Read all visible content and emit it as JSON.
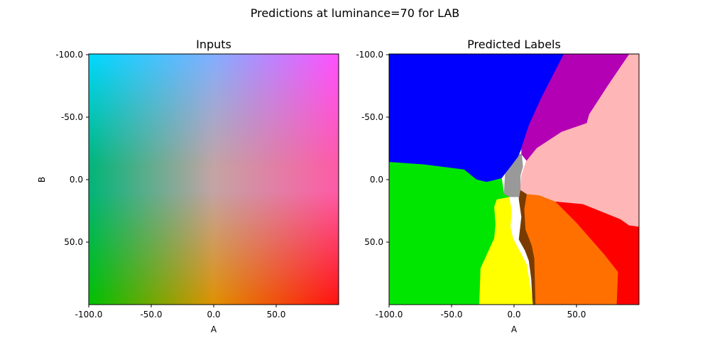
{
  "figure_title": "Predictions at luminance=70 for LAB",
  "chart_data": [
    {
      "type": "heatmap",
      "title": "Inputs",
      "xlabel": "A",
      "ylabel": "B",
      "xlim": [
        -100,
        100
      ],
      "ylim": [
        -100,
        100
      ],
      "y_inverted": true,
      "x_ticks": [
        "-100.0",
        "-50.0",
        "0.0",
        "50.0"
      ],
      "y_ticks": [
        "-100.0",
        "-50.0",
        "0.0",
        "50.0"
      ],
      "color_grid": {
        "a_values": [
          -100,
          0,
          100
        ],
        "b_values": [
          -100,
          0,
          100
        ],
        "rows": [
          [
            "#00d8ff",
            "#82aeff",
            "#ff50ff"
          ],
          [
            "#00b578",
            "#c4a4a4",
            "#ff5aa6"
          ],
          [
            "#00c000",
            "#e09000",
            "#ff1010"
          ]
        ]
      }
    },
    {
      "type": "heatmap",
      "title": "Predicted Labels",
      "xlabel": "A",
      "ylabel": "",
      "xlim": [
        -100,
        100
      ],
      "ylim": [
        -100,
        100
      ],
      "y_inverted": true,
      "x_ticks": [
        "-100.0",
        "-50.0",
        "0.0",
        "50.0"
      ],
      "y_ticks": [
        "-100.0",
        "-50.0",
        "0.0",
        "50.0"
      ],
      "regions": [
        {
          "label": "pink",
          "color": "#ffb6b6",
          "polygon": [
            [
              100,
              -100
            ],
            [
              100,
              38
            ],
            [
              92,
              37
            ],
            [
              85,
              32
            ],
            [
              55,
              20
            ],
            [
              28,
              19
            ],
            [
              20,
              13
            ],
            [
              10,
              12
            ],
            [
              5,
              8
            ],
            [
              6,
              -3
            ],
            [
              10,
              -15
            ],
            [
              18,
              -25
            ],
            [
              38,
              -38
            ],
            [
              58,
              -45
            ],
            [
              60,
              -52
            ],
            [
              75,
              -75
            ],
            [
              92,
              -100
            ]
          ]
        },
        {
          "label": "red",
          "color": "#ff0000",
          "polygon": [
            [
              100,
              38
            ],
            [
              100,
              100
            ],
            [
              82,
              100
            ],
            [
              83,
              74
            ],
            [
              72,
              60
            ],
            [
              50,
              35
            ],
            [
              33,
              18
            ],
            [
              55,
              20
            ],
            [
              85,
              32
            ],
            [
              92,
              37
            ]
          ]
        },
        {
          "label": "orange",
          "color": "#ff7000",
          "polygon": [
            [
              10,
              12
            ],
            [
              20,
              13
            ],
            [
              33,
              18
            ],
            [
              50,
              35
            ],
            [
              72,
              60
            ],
            [
              83,
              74
            ],
            [
              82,
              100
            ],
            [
              17,
              100
            ],
            [
              16,
              63
            ],
            [
              14,
              53
            ],
            [
              9,
              40
            ],
            [
              8,
              24
            ]
          ]
        },
        {
          "label": "brown",
          "color": "#7a3b00",
          "polygon": [
            [
              4,
              8
            ],
            [
              10,
              12
            ],
            [
              8,
              24
            ],
            [
              9,
              40
            ],
            [
              14,
              53
            ],
            [
              16,
              63
            ],
            [
              17,
              100
            ],
            [
              15,
              100
            ],
            [
              14,
              80
            ],
            [
              12,
              65
            ],
            [
              9,
              57
            ],
            [
              4,
              48
            ],
            [
              6,
              30
            ],
            [
              4,
              16
            ]
          ]
        },
        {
          "label": "yellow",
          "color": "#ffff00",
          "polygon": [
            [
              -14,
              16
            ],
            [
              -4,
              14
            ],
            [
              -2,
              25
            ],
            [
              -3,
              38
            ],
            [
              -1,
              47
            ],
            [
              10,
              68
            ],
            [
              12,
              80
            ],
            [
              15,
              100
            ],
            [
              -28,
              100
            ],
            [
              -27,
              71
            ],
            [
              -16,
              47
            ],
            [
              -15,
              36
            ],
            [
              -16,
              22
            ]
          ]
        },
        {
          "label": "gray",
          "color": "#999999",
          "polygon": [
            [
              2,
              -20
            ],
            [
              6,
              -20
            ],
            [
              7,
              -10
            ],
            [
              5,
              -3
            ],
            [
              5,
              8
            ],
            [
              4,
              14
            ],
            [
              -4,
              14
            ],
            [
              -8,
              12
            ],
            [
              -7,
              -5
            ],
            [
              -3,
              -10
            ]
          ]
        },
        {
          "label": "green",
          "color": "#00e600",
          "polygon": [
            [
              -100,
              -14
            ],
            [
              -72,
              -12
            ],
            [
              -40,
              -8
            ],
            [
              -30,
              0
            ],
            [
              -22,
              2
            ],
            [
              -10,
              -1
            ],
            [
              -8,
              12
            ],
            [
              -4,
              14
            ],
            [
              -14,
              16
            ],
            [
              -16,
              22
            ],
            [
              -15,
              36
            ],
            [
              -16,
              47
            ],
            [
              -27,
              71
            ],
            [
              -28,
              100
            ],
            [
              -100,
              100
            ]
          ]
        },
        {
          "label": "blue",
          "color": "#0000ff",
          "polygon": [
            [
              -100,
              -100
            ],
            [
              40,
              -100
            ],
            [
              22,
              -65
            ],
            [
              12,
              -43
            ],
            [
              6,
              -25
            ],
            [
              3,
              -18
            ],
            [
              -3,
              -10
            ],
            [
              -7,
              -5
            ],
            [
              -10,
              -1
            ],
            [
              -22,
              2
            ],
            [
              -30,
              0
            ],
            [
              -40,
              -8
            ],
            [
              -72,
              -12
            ],
            [
              -100,
              -14
            ]
          ]
        },
        {
          "label": "purple",
          "color": "#b400b4",
          "polygon": [
            [
              40,
              -100
            ],
            [
              92,
              -100
            ],
            [
              75,
              -75
            ],
            [
              60,
              -52
            ],
            [
              58,
              -45
            ],
            [
              38,
              -38
            ],
            [
              18,
              -25
            ],
            [
              10,
              -15
            ],
            [
              6,
              -20
            ],
            [
              6,
              -25
            ],
            [
              12,
              -43
            ],
            [
              22,
              -65
            ]
          ]
        }
      ]
    }
  ]
}
